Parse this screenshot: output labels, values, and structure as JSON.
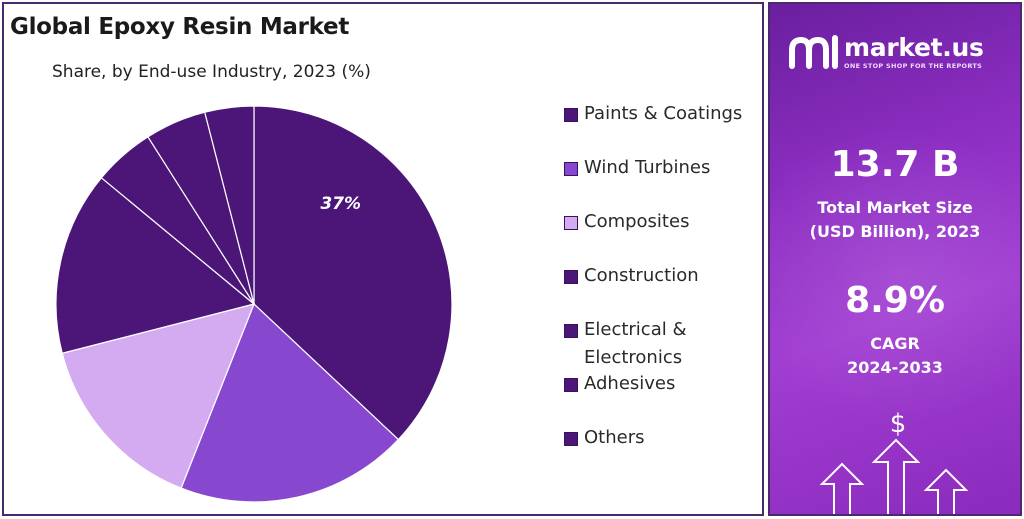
{
  "header": {
    "title": "Global Epoxy Resin Market",
    "subtitle": "Share, by End-use Industry, 2023 (%)"
  },
  "chart_data": {
    "type": "pie",
    "title": "Global Epoxy Resin Market",
    "subtitle": "Share, by End-use Industry, 2023 (%)",
    "slices": [
      {
        "label": "Paints & Coatings",
        "value": 37,
        "color": "#4b1678",
        "shown_label": "37%"
      },
      {
        "label": "Wind Turbines",
        "value": 19,
        "color": "#8748cf",
        "shown_label": ""
      },
      {
        "label": "Composites",
        "value": 15,
        "color": "#d4aaf0",
        "shown_label": ""
      },
      {
        "label": "Construction",
        "value": 15,
        "color": "#4b1678",
        "shown_label": ""
      },
      {
        "label": "Electrical & Electronics",
        "value": 5,
        "color": "#4b1678",
        "shown_label": ""
      },
      {
        "label": "Adhesives",
        "value": 5,
        "color": "#4b1678",
        "shown_label": ""
      },
      {
        "label": "Others",
        "value": 4,
        "color": "#4b1678",
        "shown_label": ""
      }
    ],
    "legend_position": "right"
  },
  "legend": [
    {
      "lines": [
        "Paints & Coatings"
      ],
      "color": "#4b1678"
    },
    {
      "lines": [
        "Wind Turbines"
      ],
      "color": "#8748cf"
    },
    {
      "lines": [
        "Composites"
      ],
      "color": "#d4aaf0"
    },
    {
      "lines": [
        "Construction"
      ],
      "color": "#4b1678"
    },
    {
      "lines": [
        "Electrical &",
        "Electronics"
      ],
      "color": "#4b1678"
    },
    {
      "lines": [
        "Adhesives"
      ],
      "color": "#4b1678"
    },
    {
      "lines": [
        "Others"
      ],
      "color": "#4b1678"
    }
  ],
  "sidebar": {
    "brand_name": "market.us",
    "brand_tagline": "ONE STOP SHOP FOR THE REPORTS",
    "market_size_value": "13.7 B",
    "market_size_label_1": "Total Market Size",
    "market_size_label_2": "(USD Billion), 2023",
    "cagr_value": "8.9%",
    "cagr_label_1": "CAGR",
    "cagr_label_2": "2024-2033",
    "dollar_symbol": "$",
    "background_color": "#8e2fc4"
  }
}
